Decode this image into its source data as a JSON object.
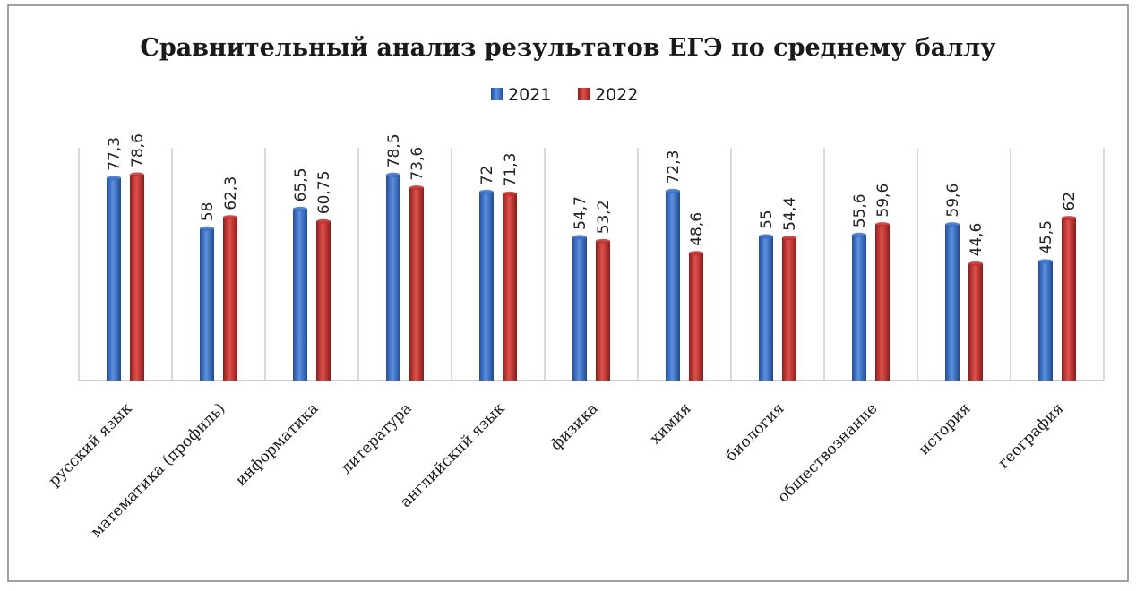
{
  "chart_data": {
    "type": "bar",
    "title": "Сравнительный анализ результатов ЕГЭ по среднему баллу",
    "categories": [
      "русский язык",
      "математика (профиль)",
      "информатика",
      "литература",
      "английский язык",
      "физика",
      "химия",
      "биология",
      "обществознание",
      "история",
      "география"
    ],
    "series": [
      {
        "name": "2021",
        "color": "#3a6fc4",
        "values": [
          77.3,
          58,
          65.5,
          78.5,
          72,
          54.7,
          72.3,
          55,
          55.6,
          59.6,
          45.5
        ],
        "labels": [
          "77,3",
          "58",
          "65,5",
          "78,5",
          "72",
          "54,7",
          "72,3",
          "55",
          "55,6",
          "59,6",
          "45,5"
        ]
      },
      {
        "name": "2022",
        "color": "#c0302e",
        "values": [
          78.6,
          62.3,
          60.75,
          73.6,
          71.3,
          53.2,
          48.6,
          54.4,
          59.6,
          44.6,
          62
        ],
        "labels": [
          "78,6",
          "62,3",
          "60,75",
          "73,6",
          "71,3",
          "53,2",
          "48,6",
          "54,4",
          "59,6",
          "44,6",
          "62"
        ]
      }
    ],
    "ylim": [
      0,
      78.6
    ],
    "xlabel": "",
    "ylabel": "",
    "grid": false,
    "legend": "top-center"
  }
}
